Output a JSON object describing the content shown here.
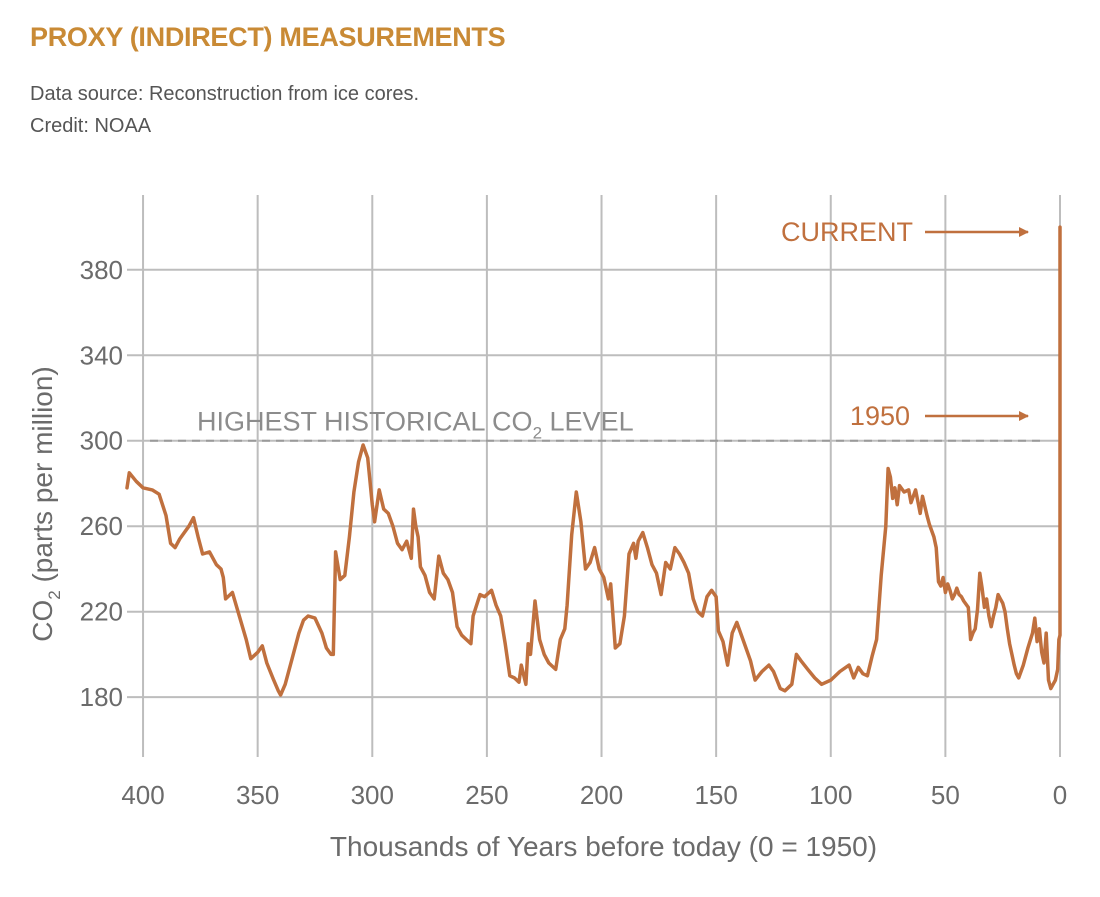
{
  "header": {
    "title": "PROXY (INDIRECT) MEASUREMENTS",
    "source": "Data source: Reconstruction from ice cores.",
    "credit": "Credit: NOAA"
  },
  "colors": {
    "accent": "#c98a35",
    "series": "#c0703e",
    "grid": "#bdbdbd",
    "text": "#6b6b6b"
  },
  "chart_data": {
    "type": "line",
    "title": "",
    "xlabel": "Thousands of Years before today (0 = 1950)",
    "ylabel": "CO2 (parts per million)",
    "ylabel_main": "CO",
    "ylabel_sub": "2",
    "ylabel_rest": " (parts per million)",
    "xlim": [
      407,
      0
    ],
    "ylim": [
      152,
      415
    ],
    "x_ticks": [
      400,
      350,
      300,
      250,
      200,
      150,
      100,
      50,
      0
    ],
    "y_ticks": [
      180,
      220,
      260,
      300,
      340,
      380
    ],
    "x_grid": [
      400,
      350,
      300,
      250,
      200,
      150,
      100,
      50,
      0
    ],
    "y_grid": [
      180,
      220,
      260,
      300,
      340,
      380
    ],
    "grid": true,
    "reference_line": {
      "value": 300,
      "label_pre": "HIGHEST HISTORICAL CO",
      "label_sub": "2",
      "label_post": " LEVEL"
    },
    "annotations": [
      {
        "text": "CURRENT",
        "x": 0,
        "y": 400
      },
      {
        "text": "1950",
        "x": 0,
        "y": 311
      }
    ],
    "series": [
      {
        "values": [
          [
            407,
            278
          ],
          [
            406,
            285
          ],
          [
            403,
            281
          ],
          [
            400,
            278
          ],
          [
            396,
            277
          ],
          [
            393,
            275
          ],
          [
            390,
            265
          ],
          [
            388,
            252
          ],
          [
            386,
            250
          ],
          [
            384,
            254
          ],
          [
            380,
            260
          ],
          [
            378,
            264
          ],
          [
            376,
            255
          ],
          [
            374,
            247
          ],
          [
            371,
            248
          ],
          [
            368,
            242
          ],
          [
            366,
            240
          ],
          [
            365,
            236
          ],
          [
            364,
            226
          ],
          [
            361,
            229
          ],
          [
            358,
            218
          ],
          [
            355,
            207
          ],
          [
            353,
            198
          ],
          [
            350,
            201
          ],
          [
            348,
            204
          ],
          [
            346,
            196
          ],
          [
            343,
            188
          ],
          [
            341,
            183
          ],
          [
            340,
            181
          ],
          [
            338,
            186
          ],
          [
            335,
            198
          ],
          [
            332,
            210
          ],
          [
            330,
            216
          ],
          [
            328,
            218
          ],
          [
            325,
            217
          ],
          [
            322,
            210
          ],
          [
            320,
            203
          ],
          [
            318,
            200
          ],
          [
            317,
            200
          ],
          [
            316,
            248
          ],
          [
            314,
            235
          ],
          [
            312,
            237
          ],
          [
            310,
            255
          ],
          [
            308,
            276
          ],
          [
            306,
            290
          ],
          [
            304,
            298
          ],
          [
            302,
            292
          ],
          [
            300,
            270
          ],
          [
            299,
            262
          ],
          [
            297,
            277
          ],
          [
            295,
            268
          ],
          [
            293,
            266
          ],
          [
            291,
            260
          ],
          [
            289,
            252
          ],
          [
            287,
            249
          ],
          [
            285,
            253
          ],
          [
            283,
            245
          ],
          [
            282,
            268
          ],
          [
            281,
            260
          ],
          [
            280,
            255
          ],
          [
            279,
            241
          ],
          [
            277,
            237
          ],
          [
            275,
            229
          ],
          [
            273,
            226
          ],
          [
            271,
            246
          ],
          [
            269,
            238
          ],
          [
            267,
            235
          ],
          [
            265,
            229
          ],
          [
            263,
            213
          ],
          [
            261,
            209
          ],
          [
            259,
            207
          ],
          [
            257,
            205
          ],
          [
            256,
            218
          ],
          [
            253,
            228
          ],
          [
            251,
            227
          ],
          [
            248,
            230
          ],
          [
            246,
            223
          ],
          [
            244,
            218
          ],
          [
            242,
            205
          ],
          [
            240,
            190
          ],
          [
            238,
            189
          ],
          [
            236,
            187
          ],
          [
            235,
            195
          ],
          [
            233,
            186
          ],
          [
            232,
            205
          ],
          [
            231,
            200
          ],
          [
            229,
            225
          ],
          [
            227,
            207
          ],
          [
            225,
            200
          ],
          [
            223,
            196
          ],
          [
            220,
            193
          ],
          [
            218,
            207
          ],
          [
            216,
            212
          ],
          [
            215,
            223
          ],
          [
            213,
            256
          ],
          [
            211,
            276
          ],
          [
            209,
            262
          ],
          [
            207,
            240
          ],
          [
            205,
            243
          ],
          [
            203,
            250
          ],
          [
            201,
            240
          ],
          [
            199,
            236
          ],
          [
            197,
            226
          ],
          [
            196,
            233
          ],
          [
            194,
            203
          ],
          [
            192,
            205
          ],
          [
            190,
            218
          ],
          [
            188,
            247
          ],
          [
            186,
            252
          ],
          [
            185,
            245
          ],
          [
            184,
            253
          ],
          [
            182,
            257
          ],
          [
            180,
            250
          ],
          [
            178,
            242
          ],
          [
            176,
            238
          ],
          [
            174,
            228
          ],
          [
            172,
            243
          ],
          [
            170,
            240
          ],
          [
            168,
            250
          ],
          [
            166,
            247
          ],
          [
            164,
            243
          ],
          [
            162,
            238
          ],
          [
            160,
            226
          ],
          [
            158,
            220
          ],
          [
            156,
            218
          ],
          [
            154,
            227
          ],
          [
            152,
            230
          ],
          [
            150,
            227
          ],
          [
            149,
            211
          ],
          [
            147,
            206
          ],
          [
            145,
            195
          ],
          [
            143,
            210
          ],
          [
            141,
            215
          ],
          [
            138,
            206
          ],
          [
            135,
            197
          ],
          [
            133,
            188
          ],
          [
            130,
            192
          ],
          [
            127,
            195
          ],
          [
            125,
            192
          ],
          [
            122,
            184
          ],
          [
            120,
            183
          ],
          [
            117,
            186
          ],
          [
            115,
            200
          ],
          [
            113,
            197
          ],
          [
            110,
            193
          ],
          [
            107,
            189
          ],
          [
            104,
            186
          ],
          [
            100,
            188
          ],
          [
            96,
            192
          ],
          [
            92,
            195
          ],
          [
            90,
            189
          ],
          [
            88,
            194
          ],
          [
            86,
            191
          ],
          [
            84,
            190
          ],
          [
            82,
            199
          ],
          [
            80,
            207
          ],
          [
            78,
            237
          ],
          [
            76,
            260
          ],
          [
            75,
            287
          ],
          [
            74,
            283
          ],
          [
            73,
            273
          ],
          [
            72,
            278
          ],
          [
            71,
            270
          ],
          [
            70,
            279
          ],
          [
            68,
            276
          ],
          [
            66,
            277
          ],
          [
            65,
            271
          ],
          [
            63,
            277
          ],
          [
            61,
            266
          ],
          [
            60,
            274
          ],
          [
            58,
            265
          ],
          [
            57,
            261
          ],
          [
            55,
            255
          ],
          [
            54,
            250
          ],
          [
            53,
            234
          ],
          [
            52,
            232
          ],
          [
            51,
            236
          ],
          [
            50,
            229
          ],
          [
            49,
            233
          ],
          [
            48,
            230
          ],
          [
            47,
            226
          ],
          [
            46,
            228
          ],
          [
            45,
            231
          ],
          [
            44,
            228
          ],
          [
            43,
            227
          ],
          [
            42,
            225
          ],
          [
            40,
            222
          ],
          [
            39,
            207
          ],
          [
            38,
            210
          ],
          [
            37,
            212
          ],
          [
            36,
            221
          ],
          [
            35,
            238
          ],
          [
            34,
            231
          ],
          [
            33,
            222
          ],
          [
            32,
            226
          ],
          [
            31,
            218
          ],
          [
            30,
            213
          ],
          [
            29,
            218
          ],
          [
            28,
            222
          ],
          [
            27,
            228
          ],
          [
            26,
            226
          ],
          [
            25,
            224
          ],
          [
            24,
            220
          ],
          [
            23,
            212
          ],
          [
            22,
            205
          ],
          [
            21,
            200
          ],
          [
            20,
            195
          ],
          [
            19,
            191
          ],
          [
            18,
            189
          ],
          [
            16,
            195
          ],
          [
            14,
            203
          ],
          [
            12,
            210
          ],
          [
            11,
            217
          ],
          [
            10,
            206
          ],
          [
            9,
            212
          ],
          [
            8,
            201
          ],
          [
            7,
            196
          ],
          [
            6,
            210
          ],
          [
            5,
            188
          ],
          [
            4,
            184
          ],
          [
            3,
            186
          ],
          [
            2,
            188
          ],
          [
            1,
            193
          ],
          [
            0.5,
            207
          ],
          [
            0,
            209
          ]
        ]
      }
    ]
  }
}
